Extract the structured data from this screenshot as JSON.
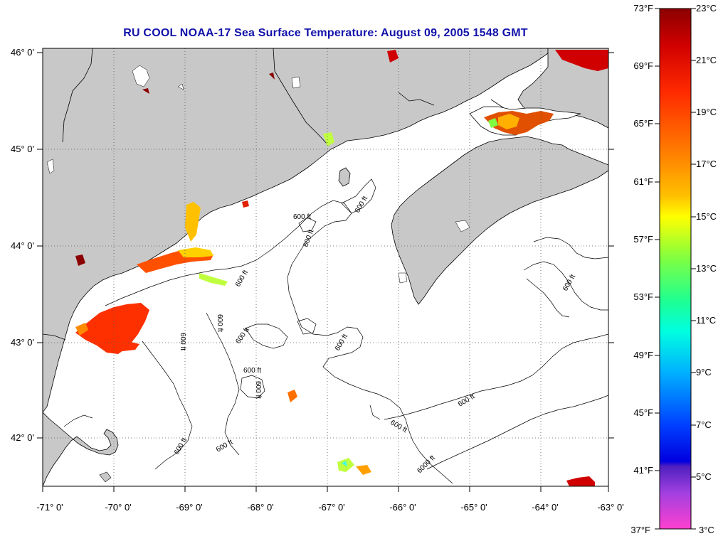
{
  "title": "RU COOL  NOAA-17  Sea Surface Temperature:  August 09, 2005 1548 GMT",
  "lat_labels": [
    "46° 0'",
    "45° 0'",
    "44° 0'",
    "43° 0'",
    "42° 0'"
  ],
  "lon_labels": [
    "-71° 0'",
    "-70° 0'",
    "-69° 0'",
    "-68° 0'",
    "-67° 0'",
    "-66° 0'",
    "-65° 0'",
    "-64° 0'",
    "-63° 0'"
  ],
  "contour_labels": [
    "600 ft",
    "600 ft",
    "600 ft",
    "600 ft",
    "600 ft",
    "600 ft",
    "600 ft",
    "600 ft",
    "600 ft",
    "600 ft",
    "600 ft",
    "600 ft",
    "600 ft",
    "600 ft",
    "600 ft",
    "6000 ft"
  ],
  "colorbar": {
    "fahrenheit": [
      "73°F",
      "69°F",
      "65°F",
      "61°F",
      "57°F",
      "53°F",
      "49°F",
      "45°F",
      "41°F",
      "37°F"
    ],
    "celsius": [
      "23°C",
      "21°C",
      "19°C",
      "17°C",
      "15°C",
      "13°C",
      "11°C",
      "9°C",
      "7°C",
      "5°C",
      "3°C"
    ]
  },
  "colors": {
    "land": "#c8c8c8",
    "water": "#ffffff",
    "title": "#1111aa",
    "coast": "#000000"
  }
}
